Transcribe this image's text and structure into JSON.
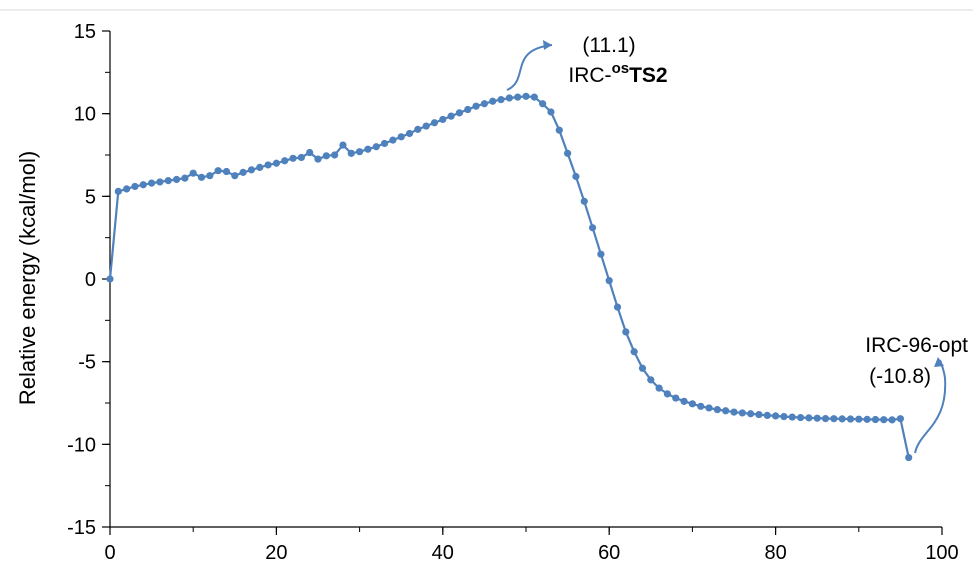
{
  "chart_data": {
    "type": "line",
    "ylabel": "Relative energy (kcal/mol)",
    "xlim": [
      0,
      100
    ],
    "ylim": [
      -15,
      15
    ],
    "x_ticks": [
      0,
      20,
      40,
      60,
      80,
      100
    ],
    "y_ticks": [
      15,
      10,
      5,
      0,
      -5,
      -10,
      -15
    ],
    "grid": false,
    "series_color": "#4f81bd",
    "series": [
      {
        "x": [
          0,
          1,
          2,
          3,
          4,
          5,
          6,
          7,
          8,
          9,
          10,
          11,
          12,
          13,
          14,
          15,
          16,
          17,
          18,
          19,
          20,
          21,
          22,
          23,
          24,
          25,
          26,
          27,
          28,
          29,
          30,
          31,
          32,
          33,
          34,
          35,
          36,
          37,
          38,
          39,
          40,
          41,
          42,
          43,
          44,
          45,
          46,
          47,
          48,
          49,
          50,
          51,
          52,
          53,
          54,
          55,
          56,
          57,
          58,
          59,
          60,
          61,
          62,
          63,
          64,
          65,
          66,
          67,
          68,
          69,
          70,
          71,
          72,
          73,
          74,
          75,
          76,
          77,
          78,
          79,
          80,
          81,
          82,
          83,
          84,
          85,
          86,
          87,
          88,
          89,
          90,
          91,
          92,
          93,
          94,
          95,
          96
        ],
        "y": [
          0,
          5.3,
          5.45,
          5.6,
          5.7,
          5.8,
          5.87,
          5.95,
          6.02,
          6.1,
          6.4,
          6.15,
          6.25,
          6.55,
          6.5,
          6.25,
          6.45,
          6.6,
          6.75,
          6.9,
          7.0,
          7.15,
          7.3,
          7.35,
          7.65,
          7.25,
          7.45,
          7.5,
          8.1,
          7.6,
          7.7,
          7.85,
          8.0,
          8.2,
          8.4,
          8.6,
          8.8,
          9.05,
          9.25,
          9.45,
          9.65,
          9.85,
          10.05,
          10.25,
          10.45,
          10.6,
          10.75,
          10.85,
          10.95,
          11.0,
          11.05,
          11.0,
          10.6,
          10.1,
          9.0,
          7.6,
          6.2,
          4.7,
          3.1,
          1.5,
          -0.1,
          -1.7,
          -3.2,
          -4.4,
          -5.4,
          -6.1,
          -6.6,
          -6.95,
          -7.2,
          -7.4,
          -7.55,
          -7.7,
          -7.8,
          -7.9,
          -7.97,
          -8.05,
          -8.1,
          -8.15,
          -8.2,
          -8.25,
          -8.28,
          -8.32,
          -8.35,
          -8.38,
          -8.4,
          -8.42,
          -8.44,
          -8.45,
          -8.46,
          -8.47,
          -8.48,
          -8.49,
          -8.5,
          -8.51,
          -8.52,
          -8.45,
          -10.8
        ]
      }
    ],
    "annotations": [
      {
        "value_text": "(11.1)",
        "label_prefix": "IRC-",
        "label_superscript": "os",
        "label_bold": "TS2",
        "x": 45,
        "y": 11.1
      },
      {
        "label": "IRC-96-opt",
        "value_text": "(-10.8)",
        "x": 96,
        "y": -10.8
      }
    ]
  }
}
